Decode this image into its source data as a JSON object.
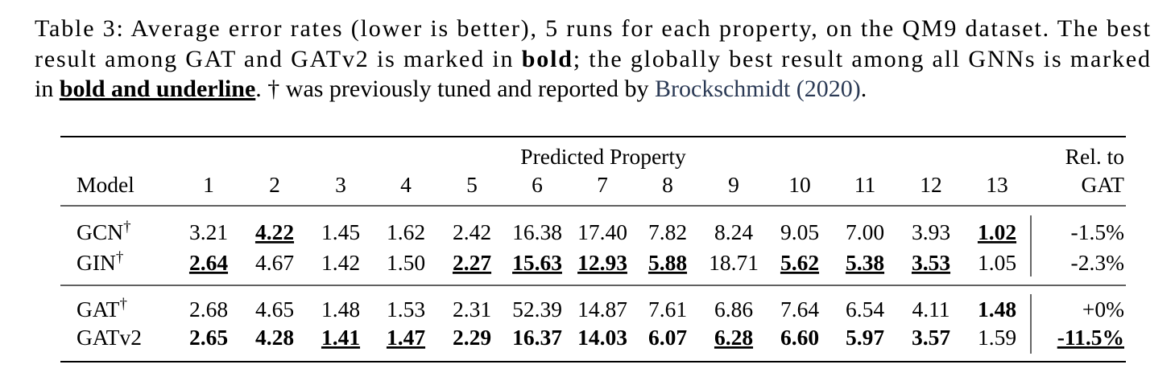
{
  "caption": {
    "lines": [
      [
        "Table 3: Average error rates (lower is better), 5 runs for each property, on the QM9 dataset. The best"
      ],
      [
        "result among GAT and GATv2 is marked in ",
        "bold",
        "; the globally best result among all GNNs is marked"
      ],
      [
        "in ",
        "bold and underline",
        ". † was previously tuned and reported by ",
        "Brockschmidt (2020)",
        "."
      ]
    ]
  },
  "table": {
    "group_header": "Predicted Property",
    "columns": [
      "Model",
      "1",
      "2",
      "3",
      "4",
      "5",
      "6",
      "7",
      "8",
      "9",
      "10",
      "11",
      "12",
      "13"
    ],
    "last_column": [
      "Rel. to",
      "GAT"
    ],
    "row_groups": [
      [
        {
          "model": "GCN",
          "dagger": "†",
          "values": [
            "3.21",
            "4.22",
            "1.45",
            "1.62",
            "2.42",
            "16.38",
            "17.40",
            "7.82",
            "8.24",
            "9.05",
            "7.00",
            "3.93",
            "1.02"
          ],
          "rel": "-1.5%"
        },
        {
          "model": "GIN",
          "dagger": "†",
          "values": [
            "2.64",
            "4.67",
            "1.42",
            "1.50",
            "2.27",
            "15.63",
            "12.93",
            "5.88",
            "18.71",
            "5.62",
            "5.38",
            "3.53",
            "1.05"
          ],
          "rel": "-2.3%"
        }
      ],
      [
        {
          "model": "GAT",
          "dagger": "†",
          "values": [
            "2.68",
            "4.65",
            "1.48",
            "1.53",
            "2.31",
            "52.39",
            "14.87",
            "7.61",
            "6.86",
            "7.64",
            "6.54",
            "4.11",
            "1.48"
          ],
          "rel": "+0%"
        },
        {
          "model": "GATv2",
          "values": [
            "2.65",
            "4.28",
            "1.41",
            "1.47",
            "2.29",
            "16.37",
            "14.03",
            "6.07",
            "6.28",
            "6.60",
            "5.97",
            "3.57",
            "1.59"
          ],
          "rel": "-11.5%"
        }
      ]
    ]
  }
}
